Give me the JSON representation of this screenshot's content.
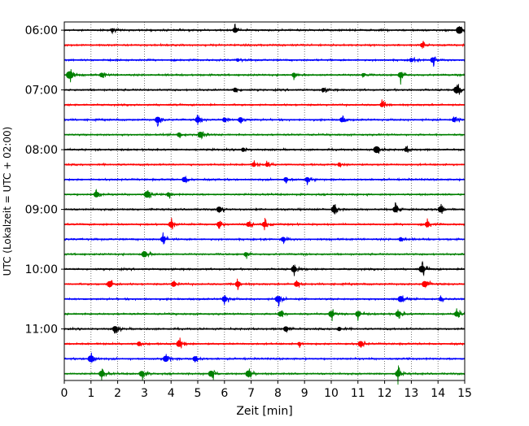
{
  "chart_data": {
    "type": "line",
    "title": "",
    "xlabel": "Zeit  [min]",
    "ylabel": "UTC (Lokalzeit = UTC + 02:00)",
    "xlim": [
      0,
      15
    ],
    "x_ticks": [
      0,
      1,
      2,
      3,
      4,
      5,
      6,
      7,
      8,
      9,
      10,
      11,
      12,
      13,
      14,
      15
    ],
    "y_tick_labels": [
      "06:00",
      "07:00",
      "08:00",
      "09:00",
      "10:00",
      "11:00"
    ],
    "grid": "vertical-dotted",
    "legend": "none",
    "start_hour": "06:00",
    "minutes_per_row": 15,
    "row_colors": [
      "#000000",
      "#ff0000",
      "#0000ff",
      "#008000"
    ],
    "series": [
      {
        "row_start": "06:00",
        "color": "#000000",
        "events_min": [
          1.8,
          6.4,
          14.8
        ],
        "event_amplitudes": [
          0.4,
          0.8,
          1.3
        ]
      },
      {
        "row_start": "06:15",
        "color": "#ff0000",
        "events_min": [
          13.4
        ],
        "event_amplitudes": [
          0.5
        ]
      },
      {
        "row_start": "06:30",
        "color": "#0000ff",
        "events_min": [
          6.5,
          13.0,
          13.8
        ],
        "event_amplitudes": [
          0.3,
          0.5,
          0.8
        ]
      },
      {
        "row_start": "06:45",
        "color": "#008000",
        "events_min": [
          0.2,
          1.4,
          8.6,
          11.2,
          12.6
        ],
        "event_amplitudes": [
          1.4,
          0.6,
          0.6,
          0.4,
          0.9
        ]
      },
      {
        "row_start": "07:00",
        "color": "#000000",
        "events_min": [
          6.4,
          9.7,
          14.7
        ],
        "event_amplitudes": [
          0.6,
          0.5,
          1.2
        ]
      },
      {
        "row_start": "07:15",
        "color": "#ff0000",
        "events_min": [
          11.9
        ],
        "event_amplitudes": [
          0.6
        ]
      },
      {
        "row_start": "07:30",
        "color": "#0000ff",
        "events_min": [
          3.5,
          5.0,
          6.0,
          6.6,
          10.4,
          14.6
        ],
        "event_amplitudes": [
          1.0,
          0.9,
          0.6,
          0.8,
          0.7,
          0.6
        ]
      },
      {
        "row_start": "07:45",
        "color": "#008000",
        "events_min": [
          4.3,
          5.1
        ],
        "event_amplitudes": [
          0.6,
          1.0
        ]
      },
      {
        "row_start": "08:00",
        "color": "#000000",
        "events_min": [
          6.7,
          11.7,
          12.8
        ],
        "event_amplitudes": [
          0.5,
          1.2,
          0.5
        ]
      },
      {
        "row_start": "08:15",
        "color": "#ff0000",
        "events_min": [
          7.1,
          7.6,
          10.3
        ],
        "event_amplitudes": [
          0.6,
          0.5,
          0.4
        ]
      },
      {
        "row_start": "08:30",
        "color": "#0000ff",
        "events_min": [
          4.5,
          8.3,
          9.1
        ],
        "event_amplitudes": [
          0.8,
          0.7,
          0.7
        ]
      },
      {
        "row_start": "08:45",
        "color": "#008000",
        "events_min": [
          1.2,
          3.1,
          3.9
        ],
        "event_amplitudes": [
          0.9,
          1.1,
          0.5
        ]
      },
      {
        "row_start": "09:00",
        "color": "#000000",
        "events_min": [
          5.8,
          10.1,
          12.4,
          14.1
        ],
        "event_amplitudes": [
          0.9,
          1.0,
          0.9,
          1.0
        ]
      },
      {
        "row_start": "09:15",
        "color": "#ff0000",
        "events_min": [
          4.0,
          5.8,
          6.9,
          7.5,
          13.6
        ],
        "event_amplitudes": [
          0.9,
          0.8,
          0.7,
          0.8,
          0.8
        ]
      },
      {
        "row_start": "09:30",
        "color": "#0000ff",
        "events_min": [
          3.7,
          8.2,
          12.6
        ],
        "event_amplitudes": [
          0.9,
          0.7,
          0.5
        ]
      },
      {
        "row_start": "09:45",
        "color": "#008000",
        "events_min": [
          3.0,
          6.8
        ],
        "event_amplitudes": [
          1.0,
          0.5
        ]
      },
      {
        "row_start": "10:00",
        "color": "#000000",
        "events_min": [
          8.6,
          13.4
        ],
        "event_amplitudes": [
          1.0,
          1.2
        ]
      },
      {
        "row_start": "10:15",
        "color": "#ff0000",
        "events_min": [
          1.7,
          4.1,
          6.5,
          8.7,
          13.5
        ],
        "event_amplitudes": [
          1.0,
          0.8,
          0.9,
          0.8,
          1.0
        ]
      },
      {
        "row_start": "10:30",
        "color": "#0000ff",
        "events_min": [
          6.0,
          8.0,
          12.6,
          14.1
        ],
        "event_amplitudes": [
          0.9,
          1.0,
          1.0,
          0.5
        ]
      },
      {
        "row_start": "10:45",
        "color": "#008000",
        "events_min": [
          8.1,
          10.0,
          11.0,
          12.5,
          14.7
        ],
        "event_amplitudes": [
          0.8,
          1.0,
          0.9,
          0.9,
          0.8
        ]
      },
      {
        "row_start": "11:00",
        "color": "#000000",
        "events_min": [
          1.9,
          8.3,
          10.3
        ],
        "event_amplitudes": [
          0.9,
          0.8,
          0.5
        ]
      },
      {
        "row_start": "11:15",
        "color": "#ff0000",
        "events_min": [
          2.8,
          4.3,
          8.8,
          11.1
        ],
        "event_amplitudes": [
          0.6,
          1.0,
          0.4,
          0.9
        ]
      },
      {
        "row_start": "11:30",
        "color": "#0000ff",
        "events_min": [
          1.0,
          3.8,
          4.9
        ],
        "event_amplitudes": [
          1.2,
          1.0,
          0.8
        ]
      },
      {
        "row_start": "11:45",
        "color": "#008000",
        "events_min": [
          1.4,
          2.9,
          5.5,
          6.9,
          12.5
        ],
        "event_amplitudes": [
          1.0,
          0.9,
          1.0,
          1.1,
          1.0
        ]
      }
    ]
  }
}
